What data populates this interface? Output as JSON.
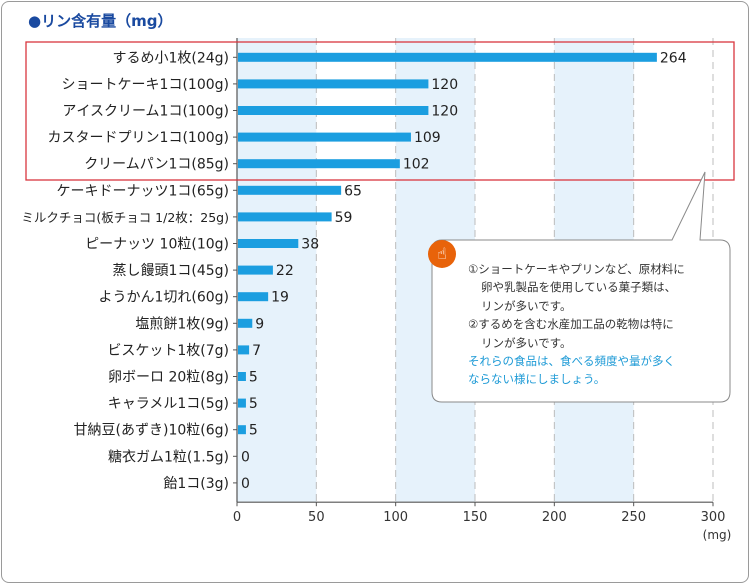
{
  "title": "●リン含有量（mg）",
  "note": {
    "line1": "①ショートケーキやプリンなど、原材料に",
    "line2": "卵や乳製品を使用している菓子類は、",
    "line3": "リンが多いです。",
    "line4": "②するめを含む水産加工品の乾物は特に",
    "line5": "リンが多いです。",
    "line6": "それらの食品は、食べる頻度や量が多く",
    "line7": "ならない様にしましょう。"
  },
  "colors": {
    "bar": "#1b9ee0",
    "band": "#e6f2fb",
    "highlight_box": "#d9363e",
    "title": "#1a4aa0",
    "highlight_text": "#1d9ad6"
  },
  "icons": {
    "note": "hand-pointing-icon"
  },
  "chart_data": {
    "type": "bar",
    "orientation": "horizontal",
    "xlabel": "(mg)",
    "xlim": [
      0,
      300
    ],
    "xticks": [
      0,
      50,
      100,
      150,
      200,
      250,
      300
    ],
    "categories": [
      "するめ小1枚(24g)",
      "ショートケーキ1コ(100g)",
      "アイスクリーム1コ(100g)",
      "カスタードプリン1コ(100g)",
      "クリームパン1コ(85g)",
      "ケーキドーナッツ1コ(65g)",
      "ミルクチョコ(板チョコ 1/2枚：25g)",
      "ピーナッツ 10粒(10g)",
      "蒸し饅頭1コ(45g)",
      "ようかん1切れ(60g)",
      "塩煎餅1枚(9g)",
      "ビスケット1枚(7g)",
      "卵ボーロ 20粒(8g)",
      "キャラメル1コ(5g)",
      "甘納豆(あずき)10粒(6g)",
      "糖衣ガム1粒(1.5g)",
      "飴1コ(3g)"
    ],
    "values": [
      264,
      120,
      120,
      109,
      102,
      65,
      59,
      38,
      22,
      19,
      9,
      7,
      5,
      5,
      5,
      0,
      0
    ],
    "highlighted_categories": 5,
    "grid": true
  }
}
